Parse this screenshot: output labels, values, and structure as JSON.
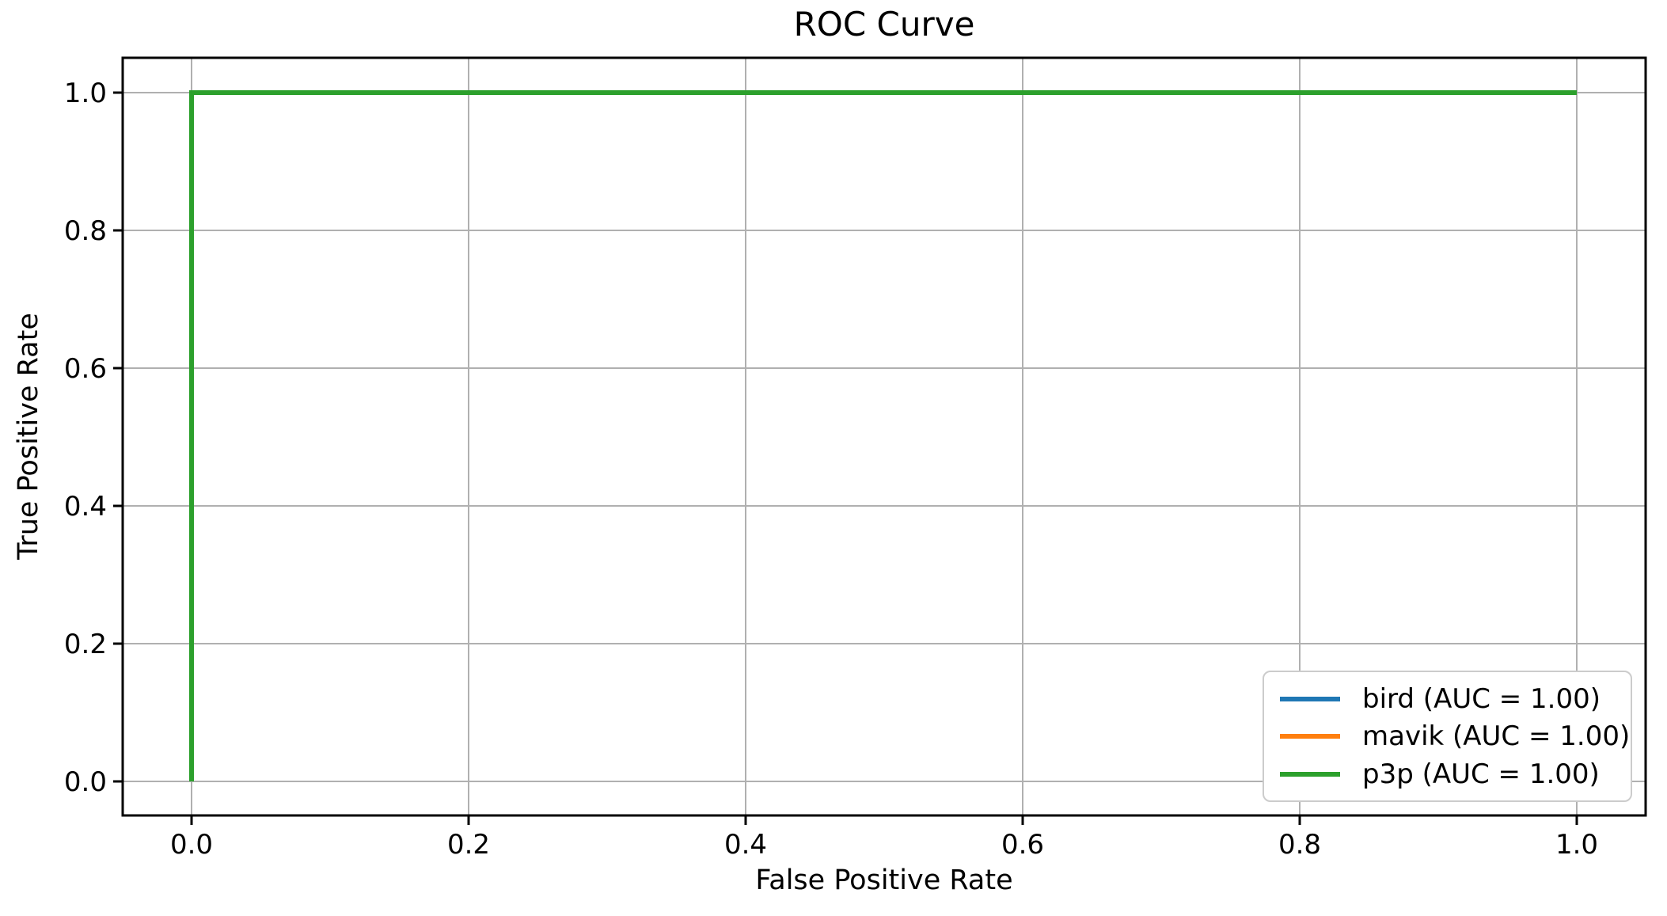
{
  "figure": {
    "title": "ROC Curve",
    "xlabel": "False Positive Rate",
    "ylabel": "True Positive Rate"
  },
  "chart_data": {
    "type": "line",
    "title": "ROC Curve",
    "xlabel": "False Positive Rate",
    "ylabel": "True Positive Rate",
    "xlim": [
      -0.05,
      1.05
    ],
    "ylim": [
      -0.05,
      1.05
    ],
    "xticks": [
      0.0,
      0.2,
      0.4,
      0.6,
      0.8,
      1.0
    ],
    "yticks": [
      0.0,
      0.2,
      0.4,
      0.6,
      0.8,
      1.0
    ],
    "tick_decimals": 1,
    "grid": true,
    "grid_color": "#b0b0b0",
    "spine_color": "#000000",
    "background_color": "#ffffff",
    "legend_position": "lower right",
    "legend_edge_color": "#cccccc",
    "series": [
      {
        "name": "bird",
        "auc": "1.00",
        "label": "bird (AUC = 1.00)",
        "color": "#1f77b4",
        "x": [
          0.0,
          0.0,
          1.0
        ],
        "y": [
          0.0,
          1.0,
          1.0
        ]
      },
      {
        "name": "mavik",
        "auc": "1.00",
        "label": "mavik (AUC = 1.00)",
        "color": "#ff7f0e",
        "x": [
          0.0,
          0.0,
          1.0
        ],
        "y": [
          0.0,
          1.0,
          1.0
        ]
      },
      {
        "name": "p3p",
        "auc": "1.00",
        "label": "p3p (AUC = 1.00)",
        "color": "#2ca02c",
        "x": [
          0.0,
          0.0,
          1.0
        ],
        "y": [
          0.0,
          1.0,
          1.0
        ]
      }
    ]
  }
}
